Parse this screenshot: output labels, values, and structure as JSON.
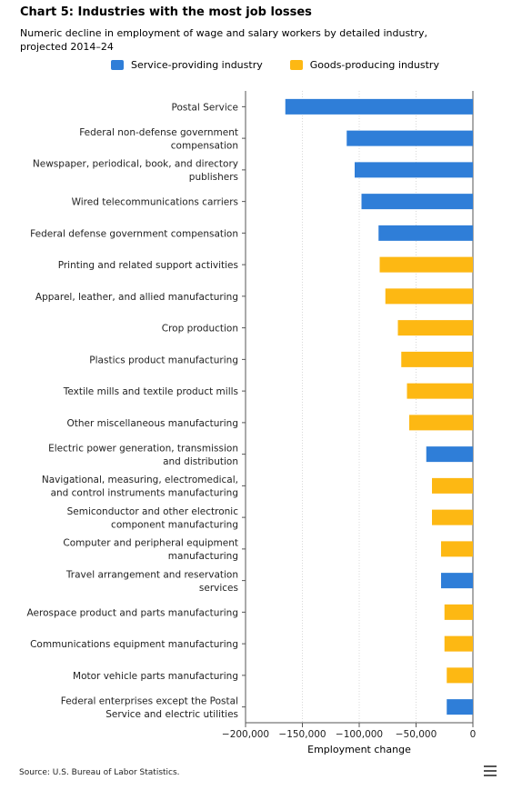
{
  "title": "Chart 5: Industries with the most job losses",
  "subtitle": "Numeric decline in employment of wage and salary workers by detailed industry, projected 2014–24",
  "legend": {
    "service": {
      "label": "Service-providing industry",
      "color": "#2f7ed8"
    },
    "goods": {
      "label": "Goods-producing industry",
      "color": "#fdb813"
    }
  },
  "source": "Source: U.S. Bureau of Labor Statistics.",
  "menu_icon": "hamburger-menu-icon",
  "chart_data": {
    "type": "bar",
    "orientation": "horizontal",
    "xlabel": "Employment change",
    "xlim": [
      -200000,
      0
    ],
    "xticks": [
      -200000,
      -150000,
      -100000,
      -50000,
      0
    ],
    "xtick_labels": [
      "−200,000",
      "−150,000",
      "−100,000",
      "−50,000",
      "0"
    ],
    "grid": "vertical-dotted",
    "legend_position": "top",
    "categories": [
      [
        "Postal Service"
      ],
      [
        "Federal non-defense government",
        "compensation"
      ],
      [
        "Newspaper, periodical, book, and directory",
        "publishers"
      ],
      [
        "Wired telecommunications carriers"
      ],
      [
        "Federal defense government compensation"
      ],
      [
        "Printing and related support activities"
      ],
      [
        "Apparel, leather, and allied manufacturing"
      ],
      [
        "Crop production"
      ],
      [
        "Plastics product manufacturing"
      ],
      [
        "Textile mills and textile product mills"
      ],
      [
        "Other miscellaneous manufacturing"
      ],
      [
        "Electric power generation, transmission",
        "and distribution"
      ],
      [
        "Navigational, measuring, electromedical,",
        "and control instruments manufacturing"
      ],
      [
        "Semiconductor and other electronic",
        "component manufacturing"
      ],
      [
        "Computer and peripheral equipment",
        "manufacturing"
      ],
      [
        "Travel arrangement and reservation",
        "services"
      ],
      [
        "Aerospace product and parts manufacturing"
      ],
      [
        "Communications equipment manufacturing"
      ],
      [
        "Motor vehicle parts manufacturing"
      ],
      [
        "Federal enterprises except the Postal",
        "Service and electric utilities"
      ]
    ],
    "values": [
      -165000,
      -111000,
      -104000,
      -98000,
      -83000,
      -82000,
      -77000,
      -66000,
      -63000,
      -58000,
      -56000,
      -41000,
      -36000,
      -36000,
      -28000,
      -28000,
      -25000,
      -25000,
      -23000,
      -23000
    ],
    "sectors": [
      "service",
      "service",
      "service",
      "service",
      "service",
      "goods",
      "goods",
      "goods",
      "goods",
      "goods",
      "goods",
      "service",
      "goods",
      "goods",
      "goods",
      "service",
      "goods",
      "goods",
      "goods",
      "service"
    ]
  }
}
